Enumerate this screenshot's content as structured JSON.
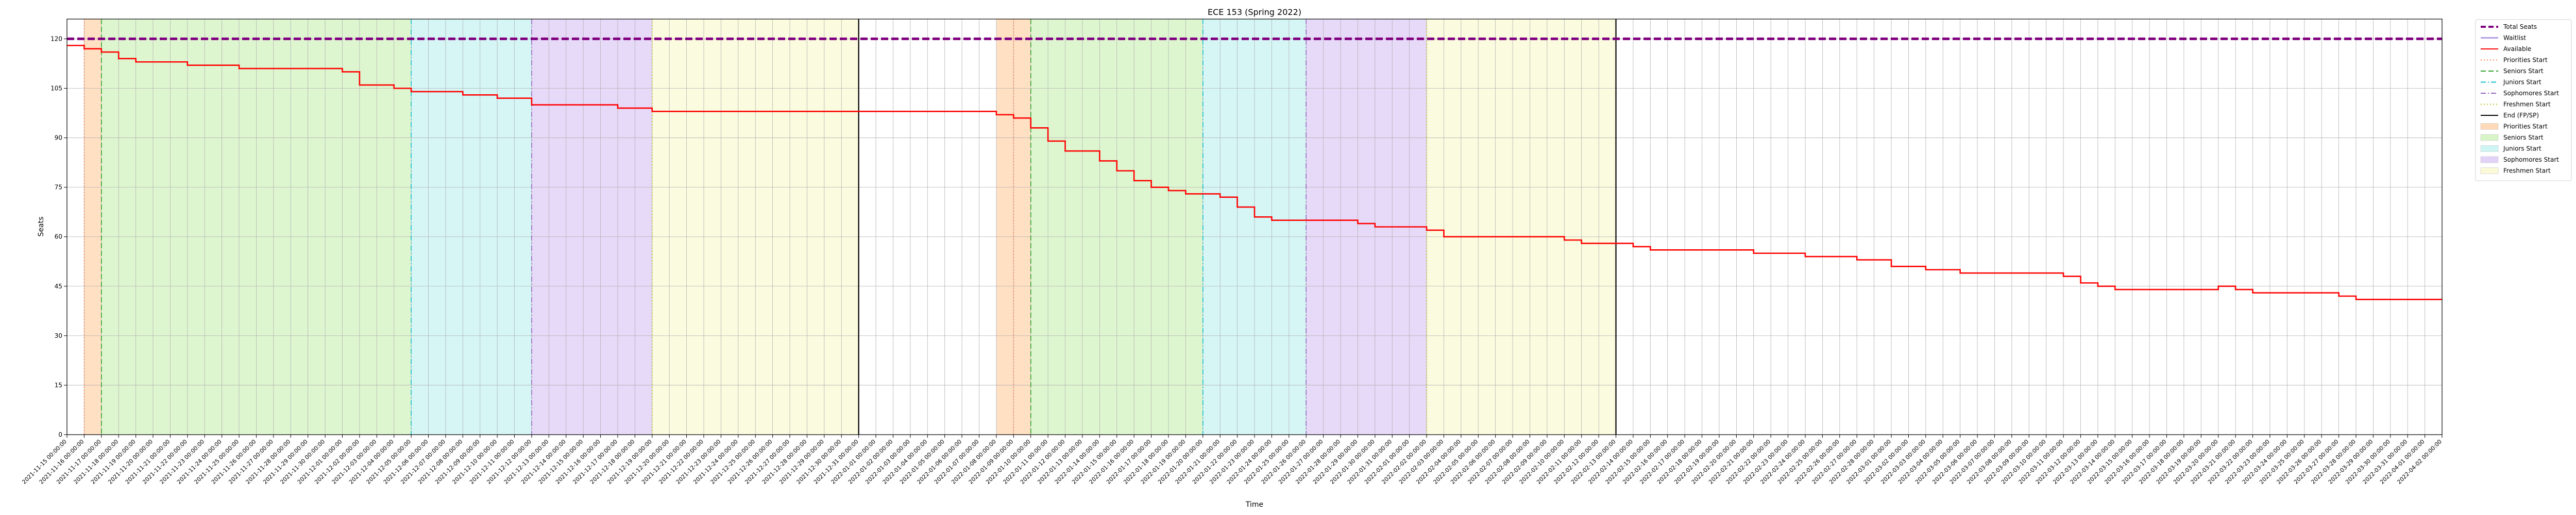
{
  "chart_data": {
    "type": "line",
    "title": "ECE 153 (Spring 2022)",
    "xlabel": "Time",
    "ylabel": "Seats",
    "ylim": [
      0,
      126
    ],
    "yticks": [
      0,
      15,
      30,
      45,
      60,
      75,
      90,
      105,
      120
    ],
    "xlim": [
      "2021-11-15",
      "2022-04-02"
    ],
    "grid": true,
    "legend_position": "outside-right",
    "series": [
      {
        "name": "Total Seats",
        "style": "dashed",
        "color": "#800080",
        "points": [
          [
            "2021-11-15",
            120
          ],
          [
            "2022-04-02",
            120
          ]
        ]
      },
      {
        "name": "Waitlist",
        "style": "solid",
        "color": "#9370db",
        "points": []
      },
      {
        "name": "Available",
        "style": "step",
        "color": "#ff0000",
        "points": [
          [
            "2021-11-15",
            118
          ],
          [
            "2021-11-16",
            117
          ],
          [
            "2021-11-17",
            116
          ],
          [
            "2021-11-18",
            114
          ],
          [
            "2021-11-19",
            113
          ],
          [
            "2021-11-22",
            112
          ],
          [
            "2021-11-25",
            111
          ],
          [
            "2021-12-01",
            110
          ],
          [
            "2021-12-02",
            106
          ],
          [
            "2021-12-04",
            105
          ],
          [
            "2021-12-05",
            104
          ],
          [
            "2021-12-08",
            103
          ],
          [
            "2021-12-10",
            102
          ],
          [
            "2021-12-12",
            100
          ],
          [
            "2021-12-17",
            99
          ],
          [
            "2021-12-19",
            98
          ],
          [
            "2022-01-01",
            98
          ],
          [
            "2022-01-07",
            98
          ],
          [
            "2022-01-08",
            97
          ],
          [
            "2022-01-09",
            96
          ],
          [
            "2022-01-10",
            93
          ],
          [
            "2022-01-11",
            89
          ],
          [
            "2022-01-12",
            86
          ],
          [
            "2022-01-14",
            83
          ],
          [
            "2022-01-15",
            80
          ],
          [
            "2022-01-16",
            77
          ],
          [
            "2022-01-17",
            75
          ],
          [
            "2022-01-18",
            74
          ],
          [
            "2022-01-19",
            73
          ],
          [
            "2022-01-21",
            72
          ],
          [
            "2022-01-22",
            69
          ],
          [
            "2022-01-23",
            66
          ],
          [
            "2022-01-24",
            65
          ],
          [
            "2022-01-29",
            64
          ],
          [
            "2022-01-30",
            63
          ],
          [
            "2022-02-02",
            62
          ],
          [
            "2022-02-03",
            60
          ],
          [
            "2022-02-10",
            59
          ],
          [
            "2022-02-11",
            58
          ],
          [
            "2022-02-14",
            57
          ],
          [
            "2022-02-15",
            56
          ],
          [
            "2022-02-21",
            55
          ],
          [
            "2022-02-24",
            54
          ],
          [
            "2022-02-27",
            53
          ],
          [
            "2022-03-01",
            51
          ],
          [
            "2022-03-03",
            50
          ],
          [
            "2022-03-05",
            49
          ],
          [
            "2022-03-11",
            48
          ],
          [
            "2022-03-12",
            46
          ],
          [
            "2022-03-13",
            45
          ],
          [
            "2022-03-14",
            44
          ],
          [
            "2022-03-20",
            45
          ],
          [
            "2022-03-21",
            44
          ],
          [
            "2022-03-22",
            43
          ],
          [
            "2022-03-27",
            42
          ],
          [
            "2022-03-28",
            41
          ],
          [
            "2022-04-02",
            41
          ]
        ]
      }
    ],
    "reference_lines": [
      {
        "name": "Priorities Start",
        "style": "dotted",
        "color": "#ff7f50",
        "dates": [
          "2021-11-16",
          "2022-01-09"
        ]
      },
      {
        "name": "Seniors Start",
        "style": "dashed",
        "color": "#2ca02c",
        "dates": [
          "2021-11-17",
          "2022-01-10"
        ]
      },
      {
        "name": "Juniors Start",
        "style": "dashdot",
        "color": "#17becf",
        "dates": [
          "2021-12-05",
          "2022-01-20"
        ]
      },
      {
        "name": "Sophomores Start",
        "style": "dashdot",
        "color": "#9467bd",
        "dates": [
          "2021-12-12",
          "2022-01-26"
        ]
      },
      {
        "name": "Freshmen Start",
        "style": "dotted",
        "color": "#bcbd22",
        "dates": [
          "2021-12-19",
          "2022-02-02"
        ]
      },
      {
        "name": "End (FP/SP)",
        "style": "solid",
        "color": "#000000",
        "dates": [
          "2021-12-31",
          "2022-02-13"
        ]
      }
    ],
    "shaded_periods": [
      {
        "name": "Priorities Start",
        "color": "#ffdab9",
        "ranges": [
          [
            "2021-11-16",
            "2021-11-17"
          ],
          [
            "2022-01-08",
            "2022-01-10"
          ]
        ]
      },
      {
        "name": "Seniors Start",
        "color": "#d8f5c8",
        "ranges": [
          [
            "2021-11-17",
            "2021-12-05"
          ],
          [
            "2022-01-10",
            "2022-01-20"
          ]
        ]
      },
      {
        "name": "Juniors Start",
        "color": "#cff4f4",
        "ranges": [
          [
            "2021-12-05",
            "2021-12-12"
          ],
          [
            "2022-01-20",
            "2022-01-26"
          ]
        ]
      },
      {
        "name": "Sophomores Start",
        "color": "#e3d2f7",
        "ranges": [
          [
            "2021-12-12",
            "2021-12-19"
          ],
          [
            "2022-01-26",
            "2022-02-02"
          ]
        ]
      },
      {
        "name": "Freshmen Start",
        "color": "#fafad9",
        "ranges": [
          [
            "2021-12-19",
            "2021-12-31"
          ],
          [
            "2022-02-02",
            "2022-02-13"
          ]
        ]
      }
    ],
    "legend": [
      {
        "label": "Total Seats",
        "kind": "line",
        "color": "#800080",
        "style": "dashed"
      },
      {
        "label": "Waitlist",
        "kind": "line",
        "color": "#9370db",
        "style": "solid"
      },
      {
        "label": "Available",
        "kind": "line",
        "color": "#ff0000",
        "style": "solid"
      },
      {
        "label": "Priorities Start",
        "kind": "line",
        "color": "#ff7f50",
        "style": "dotted"
      },
      {
        "label": "Seniors Start",
        "kind": "line",
        "color": "#2ca02c",
        "style": "dashed"
      },
      {
        "label": "Juniors Start",
        "kind": "line",
        "color": "#17becf",
        "style": "dashdot"
      },
      {
        "label": "Sophomores Start",
        "kind": "line",
        "color": "#9467bd",
        "style": "dashdot"
      },
      {
        "label": "Freshmen Start",
        "kind": "line",
        "color": "#bcbd22",
        "style": "dotted"
      },
      {
        "label": "End (FP/SP)",
        "kind": "line",
        "color": "#000000",
        "style": "solid"
      },
      {
        "label": "Priorities Start",
        "kind": "patch",
        "color": "#ffdab9"
      },
      {
        "label": "Seniors Start",
        "kind": "patch",
        "color": "#d8f5c8"
      },
      {
        "label": "Juniors Start",
        "kind": "patch",
        "color": "#cff4f4"
      },
      {
        "label": "Sophomores Start",
        "kind": "patch",
        "color": "#e3d2f7"
      },
      {
        "label": "Freshmen Start",
        "kind": "patch",
        "color": "#fafad9"
      }
    ]
  }
}
